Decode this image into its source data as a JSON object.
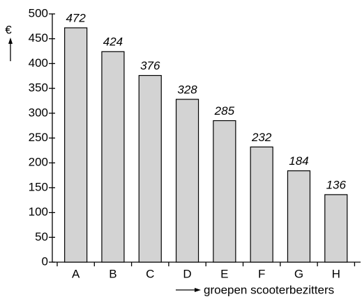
{
  "chart_data": {
    "type": "bar",
    "y_label": "€",
    "x_label": "groepen scooterbezitters",
    "categories": [
      "A",
      "B",
      "C",
      "D",
      "E",
      "F",
      "G",
      "H"
    ],
    "values": [
      472,
      424,
      376,
      328,
      285,
      232,
      184,
      136
    ],
    "color": "#d3d3d3",
    "ylim": [
      0,
      500
    ],
    "yticks": [
      0,
      50,
      100,
      150,
      200,
      250,
      300,
      350,
      400,
      450,
      500
    ]
  }
}
